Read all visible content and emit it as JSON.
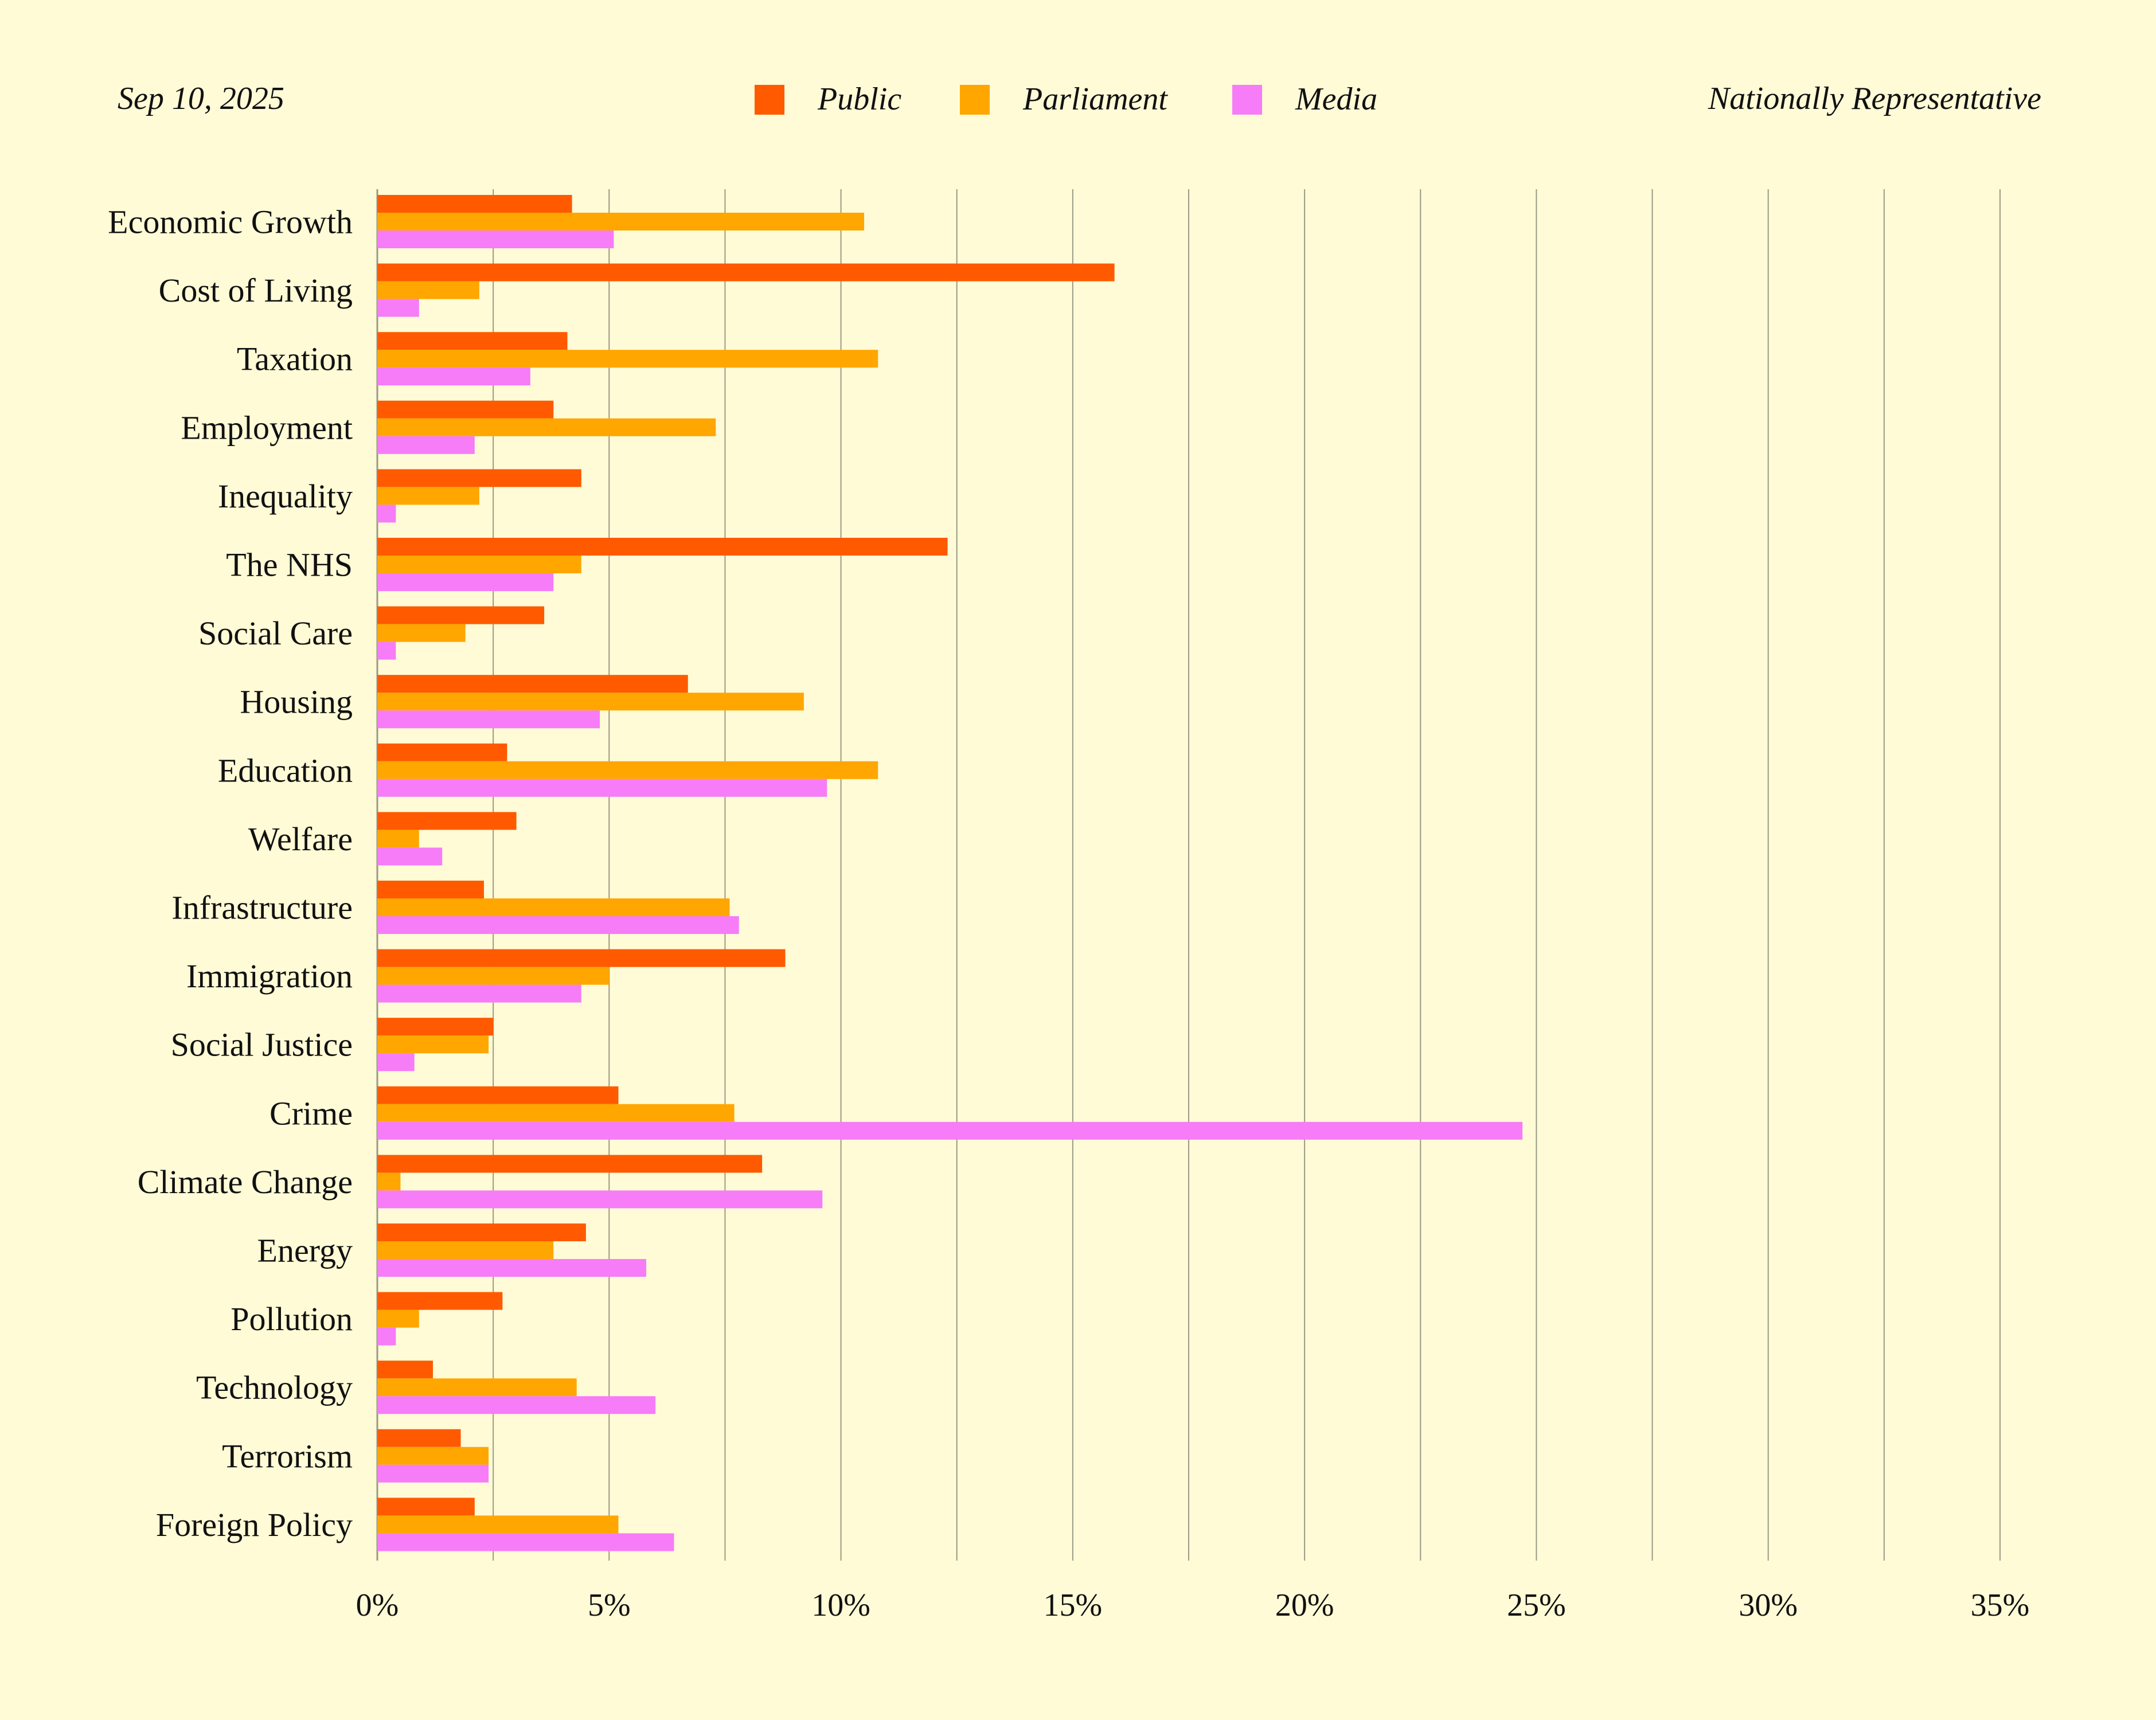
{
  "header": {
    "date": "Sep 10, 2025",
    "sample": "Nationally Representative"
  },
  "colors": {
    "background": "#fffbd6",
    "grid": "#9a9a86",
    "text": "#111111"
  },
  "chart_data": {
    "type": "bar",
    "orientation": "horizontal",
    "title": "",
    "xlabel": "",
    "ylabel": "",
    "xlim": [
      0,
      35
    ],
    "x_ticks": [
      0,
      5,
      10,
      15,
      20,
      25,
      30,
      35
    ],
    "x_tick_labels": [
      "0%",
      "5%",
      "10%",
      "15%",
      "20%",
      "25%",
      "30%",
      "35%"
    ],
    "grid": true,
    "grid_step": 2.5,
    "legend_position": "top-center",
    "categories": [
      "Economic Growth",
      "Cost of Living",
      "Taxation",
      "Employment",
      "Inequality",
      "The NHS",
      "Social Care",
      "Housing",
      "Education",
      "Welfare",
      "Infrastructure",
      "Immigration",
      "Social Justice",
      "Crime",
      "Climate Change",
      "Energy",
      "Pollution",
      "Technology",
      "Terrorism",
      "Foreign Policy"
    ],
    "series": [
      {
        "name": "Public",
        "color": "#ff5a00",
        "values": [
          4.2,
          15.9,
          4.1,
          3.8,
          4.4,
          12.3,
          3.6,
          6.7,
          2.8,
          3.0,
          2.3,
          8.8,
          2.5,
          5.2,
          8.3,
          4.5,
          2.7,
          1.2,
          1.8,
          2.1
        ]
      },
      {
        "name": "Parliament",
        "color": "#ffa600",
        "values": [
          10.5,
          2.2,
          10.8,
          7.3,
          2.2,
          4.4,
          1.9,
          9.2,
          10.8,
          0.9,
          7.6,
          5.0,
          2.4,
          7.7,
          0.5,
          3.8,
          0.9,
          4.3,
          2.4,
          5.2
        ]
      },
      {
        "name": "Media",
        "color": "#f77cf7",
        "values": [
          5.1,
          0.9,
          3.3,
          2.1,
          0.4,
          3.8,
          0.4,
          4.8,
          9.7,
          1.4,
          7.8,
          4.4,
          0.8,
          24.7,
          9.6,
          5.8,
          0.4,
          6.0,
          2.4,
          6.4
        ]
      }
    ]
  }
}
